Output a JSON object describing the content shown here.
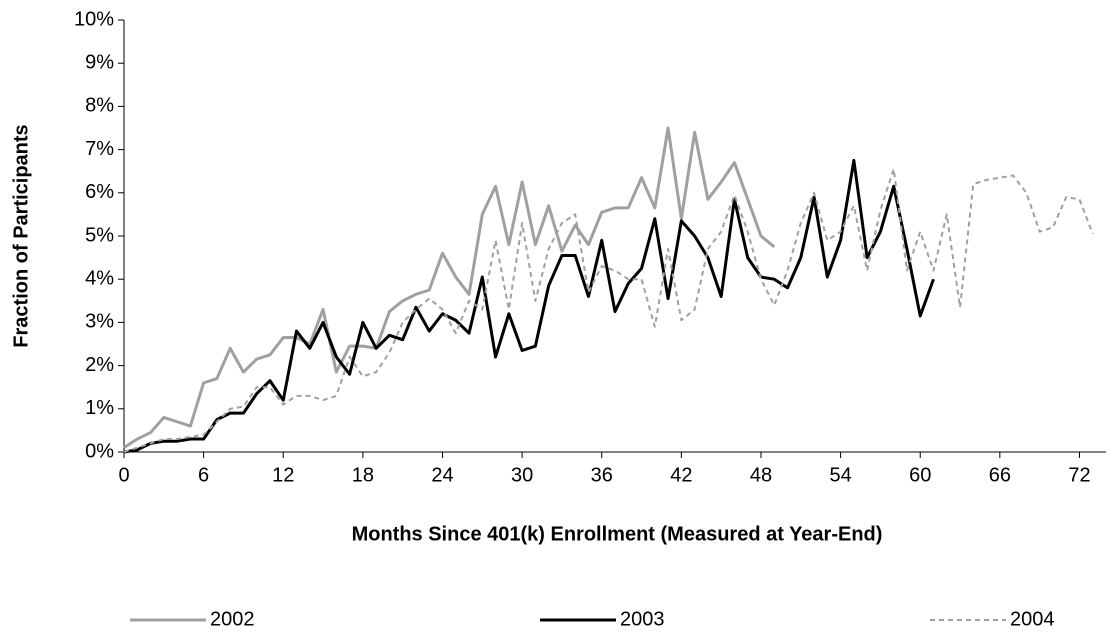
{
  "chart_data": {
    "type": "line",
    "x_label": "Months Since 401(k) Enrollment (Measured at Year-End)",
    "y_label": "Fraction of Participants",
    "x": [
      0,
      1,
      2,
      3,
      4,
      5,
      6,
      7,
      8,
      9,
      10,
      11,
      12,
      13,
      14,
      15,
      16,
      17,
      18,
      19,
      20,
      21,
      22,
      23,
      24,
      25,
      26,
      27,
      28,
      29,
      30,
      31,
      32,
      33,
      34,
      35,
      36,
      37,
      38,
      39,
      40,
      41,
      42,
      43,
      44,
      45,
      46,
      47,
      48,
      49,
      50,
      51,
      52,
      53,
      54,
      55,
      56,
      57,
      58,
      59,
      60,
      61,
      62,
      63,
      64,
      65,
      66,
      67,
      68,
      69,
      70,
      71,
      72,
      73
    ],
    "series": [
      {
        "name": "2002",
        "color": "#a0a0a0",
        "line_style": "solid",
        "line_width": 3,
        "values": [
          0.1,
          0.3,
          0.45,
          0.8,
          0.7,
          0.6,
          1.6,
          1.7,
          2.4,
          1.85,
          2.15,
          2.25,
          2.65,
          2.65,
          2.5,
          3.3,
          1.85,
          2.45,
          2.45,
          2.4,
          3.25,
          3.5,
          3.65,
          3.75,
          4.6,
          4.05,
          3.65,
          5.5,
          6.15,
          4.8,
          6.25,
          4.8,
          5.7,
          4.65,
          5.25,
          4.8,
          5.55,
          5.65,
          5.65,
          6.35,
          5.65,
          7.5,
          5.4,
          7.4,
          5.85,
          6.25,
          6.7,
          5.85,
          5.0,
          4.75,
          null,
          null,
          null,
          null,
          null,
          null,
          null,
          null,
          null,
          null,
          null,
          null,
          null,
          null,
          null,
          null,
          null,
          null,
          null,
          null,
          null,
          null,
          null,
          null
        ]
      },
      {
        "name": "2003",
        "color": "#000000",
        "line_style": "solid",
        "line_width": 3,
        "values": [
          0,
          0.05,
          0.2,
          0.25,
          0.25,
          0.3,
          0.3,
          0.75,
          0.9,
          0.9,
          1.35,
          1.65,
          1.2,
          2.8,
          2.4,
          3.0,
          2.2,
          1.8,
          3.0,
          2.4,
          2.7,
          2.6,
          3.35,
          2.8,
          3.2,
          3.05,
          2.75,
          4.05,
          2.2,
          3.2,
          2.35,
          2.45,
          3.85,
          4.55,
          4.55,
          3.6,
          4.9,
          3.25,
          3.9,
          4.25,
          5.4,
          3.55,
          5.35,
          5.0,
          4.5,
          3.6,
          5.85,
          4.5,
          4.05,
          4.0,
          3.8,
          4.5,
          5.9,
          4.05,
          4.9,
          6.75,
          4.5,
          5.1,
          6.15,
          4.7,
          3.15,
          4.0,
          null,
          null,
          null,
          null,
          null,
          null,
          null,
          null,
          null,
          null,
          null,
          null
        ]
      },
      {
        "name": "2004",
        "color": "#a0a0a0",
        "line_style": "dotted",
        "line_width": 2,
        "values": [
          0,
          0.1,
          0.2,
          0.3,
          0.3,
          0.35,
          0.4,
          0.7,
          1.0,
          1.05,
          1.5,
          1.5,
          1.1,
          1.3,
          1.3,
          1.2,
          1.3,
          2.2,
          1.75,
          1.85,
          2.3,
          3.0,
          3.3,
          3.55,
          3.3,
          2.75,
          3.5,
          3.3,
          4.9,
          3.3,
          5.3,
          3.5,
          4.7,
          5.3,
          5.5,
          3.7,
          4.3,
          4.2,
          4.0,
          4.0,
          2.9,
          4.7,
          3.05,
          3.3,
          4.7,
          5.1,
          5.95,
          5.1,
          4.0,
          3.4,
          4.2,
          5.3,
          6.0,
          4.9,
          5.1,
          5.7,
          4.2,
          5.6,
          6.55,
          4.2,
          5.1,
          4.2,
          5.5,
          3.35,
          6.2,
          6.3,
          6.35,
          6.4,
          6.0,
          5.1,
          5.2,
          5.9,
          5.85,
          5.05
        ]
      }
    ],
    "xlim": [
      0,
      74
    ],
    "xticks": [
      0,
      6,
      12,
      18,
      24,
      30,
      36,
      42,
      48,
      54,
      60,
      66,
      72
    ],
    "ylim": [
      0,
      10
    ],
    "yticks": [
      {
        "value": 0,
        "label": "0%"
      },
      {
        "value": 1,
        "label": "1%"
      },
      {
        "value": 2,
        "label": "2%"
      },
      {
        "value": 3,
        "label": "3%"
      },
      {
        "value": 4,
        "label": "4%"
      },
      {
        "value": 5,
        "label": "5%"
      },
      {
        "value": 6,
        "label": "6%"
      },
      {
        "value": 7,
        "label": "7%"
      },
      {
        "value": 8,
        "label": "8%"
      },
      {
        "value": 9,
        "label": "9%"
      },
      {
        "value": 10,
        "label": "10%"
      }
    ],
    "grid": false,
    "legend": "bottom"
  }
}
